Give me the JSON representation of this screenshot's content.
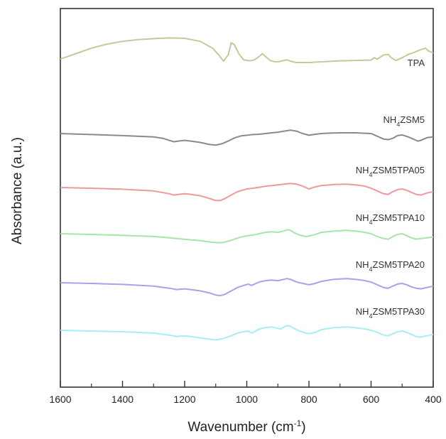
{
  "chart_data": {
    "type": "line",
    "title": "",
    "xlabel": "Wavenumber (cm",
    "xlabel_sup": "-1",
    "xlabel_end": ")",
    "ylabel": "Absorbance (a.u.)",
    "xlim": [
      1600,
      400
    ],
    "x_reversed": true,
    "x_ticks": [
      1600,
      1400,
      1200,
      1000,
      800,
      600,
      400
    ],
    "x_tick_labels": [
      "1600",
      "1400",
      "1200",
      "1000",
      "800",
      "600",
      "400"
    ],
    "y_ticks_shown": false,
    "grid": false,
    "legend": "none",
    "series": [
      {
        "name": "TPA",
        "label_parts": [
          {
            "t": "TPA"
          }
        ],
        "color": "#c8c89a",
        "offset": 0,
        "x": [
          1600,
          1550,
          1500,
          1450,
          1400,
          1350,
          1300,
          1250,
          1200,
          1150,
          1110,
          1090,
          1075,
          1060,
          1050,
          1040,
          1025,
          1010,
          990,
          975,
          960,
          950,
          940,
          925,
          910,
          895,
          880,
          870,
          860,
          840,
          800,
          760,
          700,
          650,
          600,
          590,
          580,
          560,
          545,
          535,
          520,
          500,
          480,
          460,
          440,
          425,
          415,
          400
        ],
        "y": [
          0.1,
          0.26,
          0.42,
          0.54,
          0.62,
          0.67,
          0.7,
          0.72,
          0.71,
          0.62,
          0.42,
          0.22,
          0.04,
          0.22,
          0.58,
          0.52,
          0.25,
          0.08,
          0.05,
          0.08,
          0.18,
          0.26,
          0.18,
          0.06,
          0.02,
          0.03,
          0.06,
          0.08,
          0.04,
          0.0,
          0.0,
          0.02,
          0.05,
          0.06,
          0.07,
          0.14,
          0.1,
          0.22,
          0.24,
          0.14,
          0.06,
          0.14,
          0.24,
          0.3,
          0.38,
          0.42,
          0.34,
          0.28
        ]
      },
      {
        "name": "NH4ZSM5",
        "label_parts": [
          {
            "t": "NH"
          },
          {
            "t": "4",
            "sub": true
          },
          {
            "t": "ZSM5"
          }
        ],
        "color": "#8a8a8a",
        "offset": 1,
        "x": [
          1600,
          1500,
          1400,
          1300,
          1270,
          1250,
          1235,
          1220,
          1200,
          1180,
          1150,
          1120,
          1100,
          1080,
          1060,
          1040,
          1020,
          1000,
          980,
          960,
          940,
          920,
          900,
          880,
          860,
          840,
          820,
          800,
          780,
          760,
          740,
          700,
          650,
          600,
          580,
          560,
          545,
          530,
          515,
          500,
          480,
          460,
          450,
          440,
          420,
          400
        ],
        "y": [
          0.0,
          -0.03,
          -0.06,
          -0.1,
          -0.14,
          -0.2,
          -0.24,
          -0.22,
          -0.2,
          -0.22,
          -0.26,
          -0.32,
          -0.34,
          -0.3,
          -0.22,
          -0.13,
          -0.07,
          -0.05,
          -0.03,
          -0.02,
          0.0,
          0.02,
          0.04,
          0.07,
          0.1,
          0.07,
          0.0,
          -0.05,
          -0.02,
          0.0,
          0.01,
          0.02,
          0.02,
          0.0,
          -0.08,
          -0.16,
          -0.18,
          -0.14,
          -0.06,
          -0.04,
          -0.1,
          -0.18,
          -0.22,
          -0.2,
          -0.12,
          -0.1
        ]
      },
      {
        "name": "NH4ZSM5TPA05",
        "label_parts": [
          {
            "t": "NH"
          },
          {
            "t": "4",
            "sub": true
          },
          {
            "t": "ZSM5TPA05"
          }
        ],
        "color": "#ee9a9a",
        "offset": 2,
        "x": [
          1600,
          1500,
          1400,
          1300,
          1250,
          1235,
          1220,
          1200,
          1180,
          1150,
          1120,
          1100,
          1085,
          1070,
          1050,
          1030,
          1000,
          980,
          960,
          940,
          920,
          900,
          880,
          860,
          840,
          820,
          800,
          780,
          760,
          720,
          680,
          650,
          620,
          600,
          580,
          560,
          545,
          530,
          515,
          500,
          485,
          470,
          455,
          440,
          420,
          400
        ],
        "y": [
          0.02,
          0.0,
          -0.03,
          -0.08,
          -0.16,
          -0.2,
          -0.18,
          -0.16,
          -0.18,
          -0.22,
          -0.3,
          -0.36,
          -0.36,
          -0.3,
          -0.2,
          -0.1,
          -0.02,
          0.0,
          0.03,
          0.06,
          0.08,
          0.1,
          0.12,
          0.14,
          0.12,
          0.06,
          -0.02,
          0.04,
          0.08,
          0.11,
          0.12,
          0.1,
          0.06,
          0.0,
          -0.08,
          -0.16,
          -0.18,
          -0.1,
          -0.04,
          -0.02,
          -0.06,
          -0.12,
          -0.18,
          -0.2,
          -0.14,
          -0.1
        ]
      },
      {
        "name": "NH4ZSM5TPA10",
        "label_parts": [
          {
            "t": "NH"
          },
          {
            "t": "4",
            "sub": true
          },
          {
            "t": "ZSM5TPA10"
          }
        ],
        "color": "#a6e6a6",
        "offset": 3,
        "x": [
          1600,
          1500,
          1400,
          1300,
          1250,
          1225,
          1200,
          1180,
          1150,
          1120,
          1100,
          1080,
          1060,
          1040,
          1020,
          1000,
          980,
          960,
          940,
          920,
          900,
          880,
          870,
          860,
          845,
          830,
          810,
          800,
          780,
          760,
          720,
          680,
          650,
          620,
          600,
          580,
          560,
          545,
          530,
          515,
          500,
          485,
          470,
          455,
          440,
          420,
          400
        ],
        "y": [
          0.02,
          0.0,
          -0.03,
          -0.06,
          -0.1,
          -0.12,
          -0.14,
          -0.16,
          -0.18,
          -0.22,
          -0.24,
          -0.24,
          -0.2,
          -0.14,
          -0.08,
          -0.04,
          -0.02,
          0.02,
          0.06,
          0.08,
          0.06,
          0.1,
          0.14,
          0.12,
          0.04,
          -0.02,
          -0.06,
          -0.05,
          0.0,
          0.06,
          0.1,
          0.12,
          0.1,
          0.06,
          0.02,
          -0.06,
          -0.12,
          -0.14,
          -0.06,
          0.0,
          0.02,
          -0.04,
          -0.1,
          -0.14,
          -0.12,
          -0.1,
          -0.08
        ]
      },
      {
        "name": "NH4ZSM5TPA20",
        "label_parts": [
          {
            "t": "NH"
          },
          {
            "t": "4",
            "sub": true
          },
          {
            "t": "ZSM5TPA20"
          }
        ],
        "color": "#a4a4e8",
        "offset": 4,
        "x": [
          1600,
          1500,
          1400,
          1300,
          1250,
          1225,
          1200,
          1180,
          1150,
          1120,
          1100,
          1085,
          1070,
          1050,
          1030,
          1010,
          995,
          985,
          975,
          960,
          940,
          920,
          900,
          880,
          870,
          860,
          845,
          830,
          810,
          800,
          780,
          760,
          720,
          680,
          650,
          620,
          600,
          580,
          560,
          545,
          530,
          515,
          500,
          485,
          470,
          455,
          440,
          420,
          400
        ],
        "y": [
          0.0,
          -0.02,
          -0.05,
          -0.1,
          -0.16,
          -0.2,
          -0.18,
          -0.2,
          -0.24,
          -0.3,
          -0.36,
          -0.38,
          -0.34,
          -0.24,
          -0.14,
          -0.08,
          -0.04,
          -0.08,
          -0.04,
          0.02,
          0.06,
          0.08,
          0.06,
          0.1,
          0.12,
          0.1,
          0.04,
          0.0,
          -0.04,
          -0.06,
          -0.02,
          0.04,
          0.1,
          0.12,
          0.1,
          0.06,
          0.02,
          -0.06,
          -0.14,
          -0.16,
          -0.1,
          -0.04,
          -0.02,
          -0.06,
          -0.12,
          -0.16,
          -0.18,
          -0.14,
          -0.1
        ]
      },
      {
        "name": "NH4ZSM5TPA30",
        "label_parts": [
          {
            "t": "NH"
          },
          {
            "t": "4",
            "sub": true
          },
          {
            "t": "ZSM5TPA30"
          }
        ],
        "color": "#a6eef2",
        "offset": 5,
        "x": [
          1600,
          1500,
          1400,
          1300,
          1250,
          1225,
          1200,
          1180,
          1150,
          1120,
          1100,
          1085,
          1070,
          1050,
          1030,
          1010,
          995,
          985,
          975,
          960,
          940,
          920,
          900,
          890,
          880,
          870,
          860,
          845,
          830,
          810,
          800,
          780,
          760,
          720,
          680,
          650,
          620,
          600,
          580,
          560,
          545,
          530,
          515,
          500,
          485,
          470,
          455,
          440,
          420,
          400
        ],
        "y": [
          0.02,
          0.0,
          -0.02,
          -0.06,
          -0.12,
          -0.16,
          -0.14,
          -0.16,
          -0.2,
          -0.24,
          -0.26,
          -0.24,
          -0.2,
          -0.14,
          -0.06,
          -0.02,
          0.0,
          -0.06,
          -0.02,
          0.06,
          0.1,
          0.12,
          0.08,
          0.06,
          0.12,
          0.16,
          0.14,
          0.06,
          0.0,
          -0.06,
          -0.08,
          -0.04,
          0.04,
          0.1,
          0.12,
          0.1,
          0.06,
          0.02,
          -0.04,
          -0.12,
          -0.14,
          -0.08,
          -0.02,
          0.0,
          -0.04,
          -0.1,
          -0.16,
          -0.18,
          -0.14,
          -0.1
        ]
      }
    ]
  }
}
